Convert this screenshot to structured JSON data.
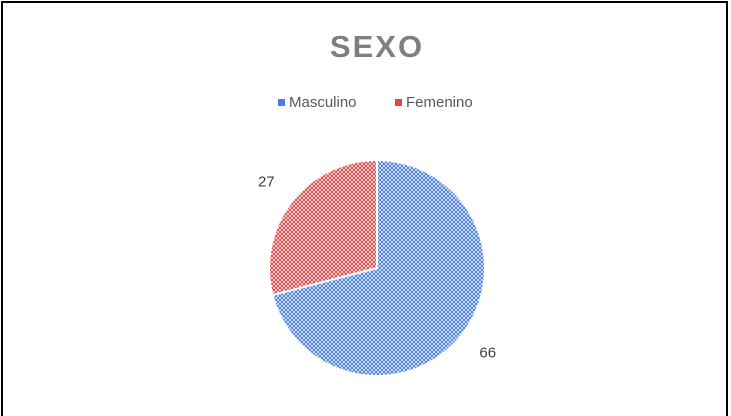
{
  "chart_data": {
    "type": "pie",
    "title": "SEXO",
    "categories": [
      "Masculino",
      "Femenino"
    ],
    "values": [
      66,
      27
    ],
    "colors": [
      "#4a7fe0",
      "#e04848"
    ],
    "legend": "top"
  }
}
